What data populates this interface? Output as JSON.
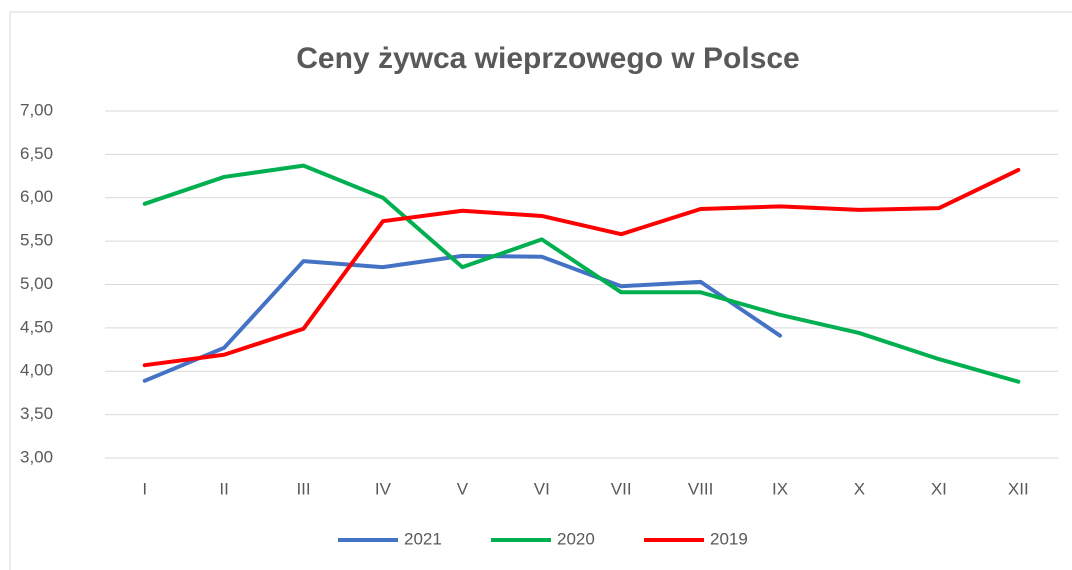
{
  "chart_data": {
    "type": "line",
    "title": "Ceny żywca wieprzowego w Polsce",
    "categories": [
      "I",
      "II",
      "III",
      "IV",
      "V",
      "VI",
      "VII",
      "VIII",
      "IX",
      "X",
      "XI",
      "XII"
    ],
    "series": [
      {
        "name": "2021",
        "color": "#4472c4",
        "values": [
          3.89,
          4.27,
          5.27,
          5.2,
          5.33,
          5.32,
          4.98,
          5.03,
          4.41,
          null,
          null,
          null
        ]
      },
      {
        "name": "2020",
        "color": "#00b050",
        "values": [
          5.93,
          6.24,
          6.37,
          6.0,
          5.2,
          5.52,
          4.91,
          4.91,
          4.65,
          4.44,
          4.14,
          3.88
        ]
      },
      {
        "name": "2019",
        "color": "#ff0000",
        "values": [
          4.07,
          4.19,
          4.49,
          5.73,
          5.85,
          5.79,
          5.58,
          5.87,
          5.9,
          5.86,
          5.88,
          6.32
        ]
      }
    ],
    "ylim": [
      3,
      7
    ],
    "yticks": [
      {
        "value": 3,
        "label": "3,00"
      },
      {
        "value": 3.5,
        "label": "3,50"
      },
      {
        "value": 4,
        "label": "4,00"
      },
      {
        "value": 4.5,
        "label": "4,50"
      },
      {
        "value": 5,
        "label": "5,00"
      },
      {
        "value": 5.5,
        "label": "5,50"
      },
      {
        "value": 6,
        "label": "6,00"
      },
      {
        "value": 6.5,
        "label": "6,50"
      },
      {
        "value": 7,
        "label": "7,00"
      }
    ],
    "grid": true,
    "legend": "bottom"
  }
}
